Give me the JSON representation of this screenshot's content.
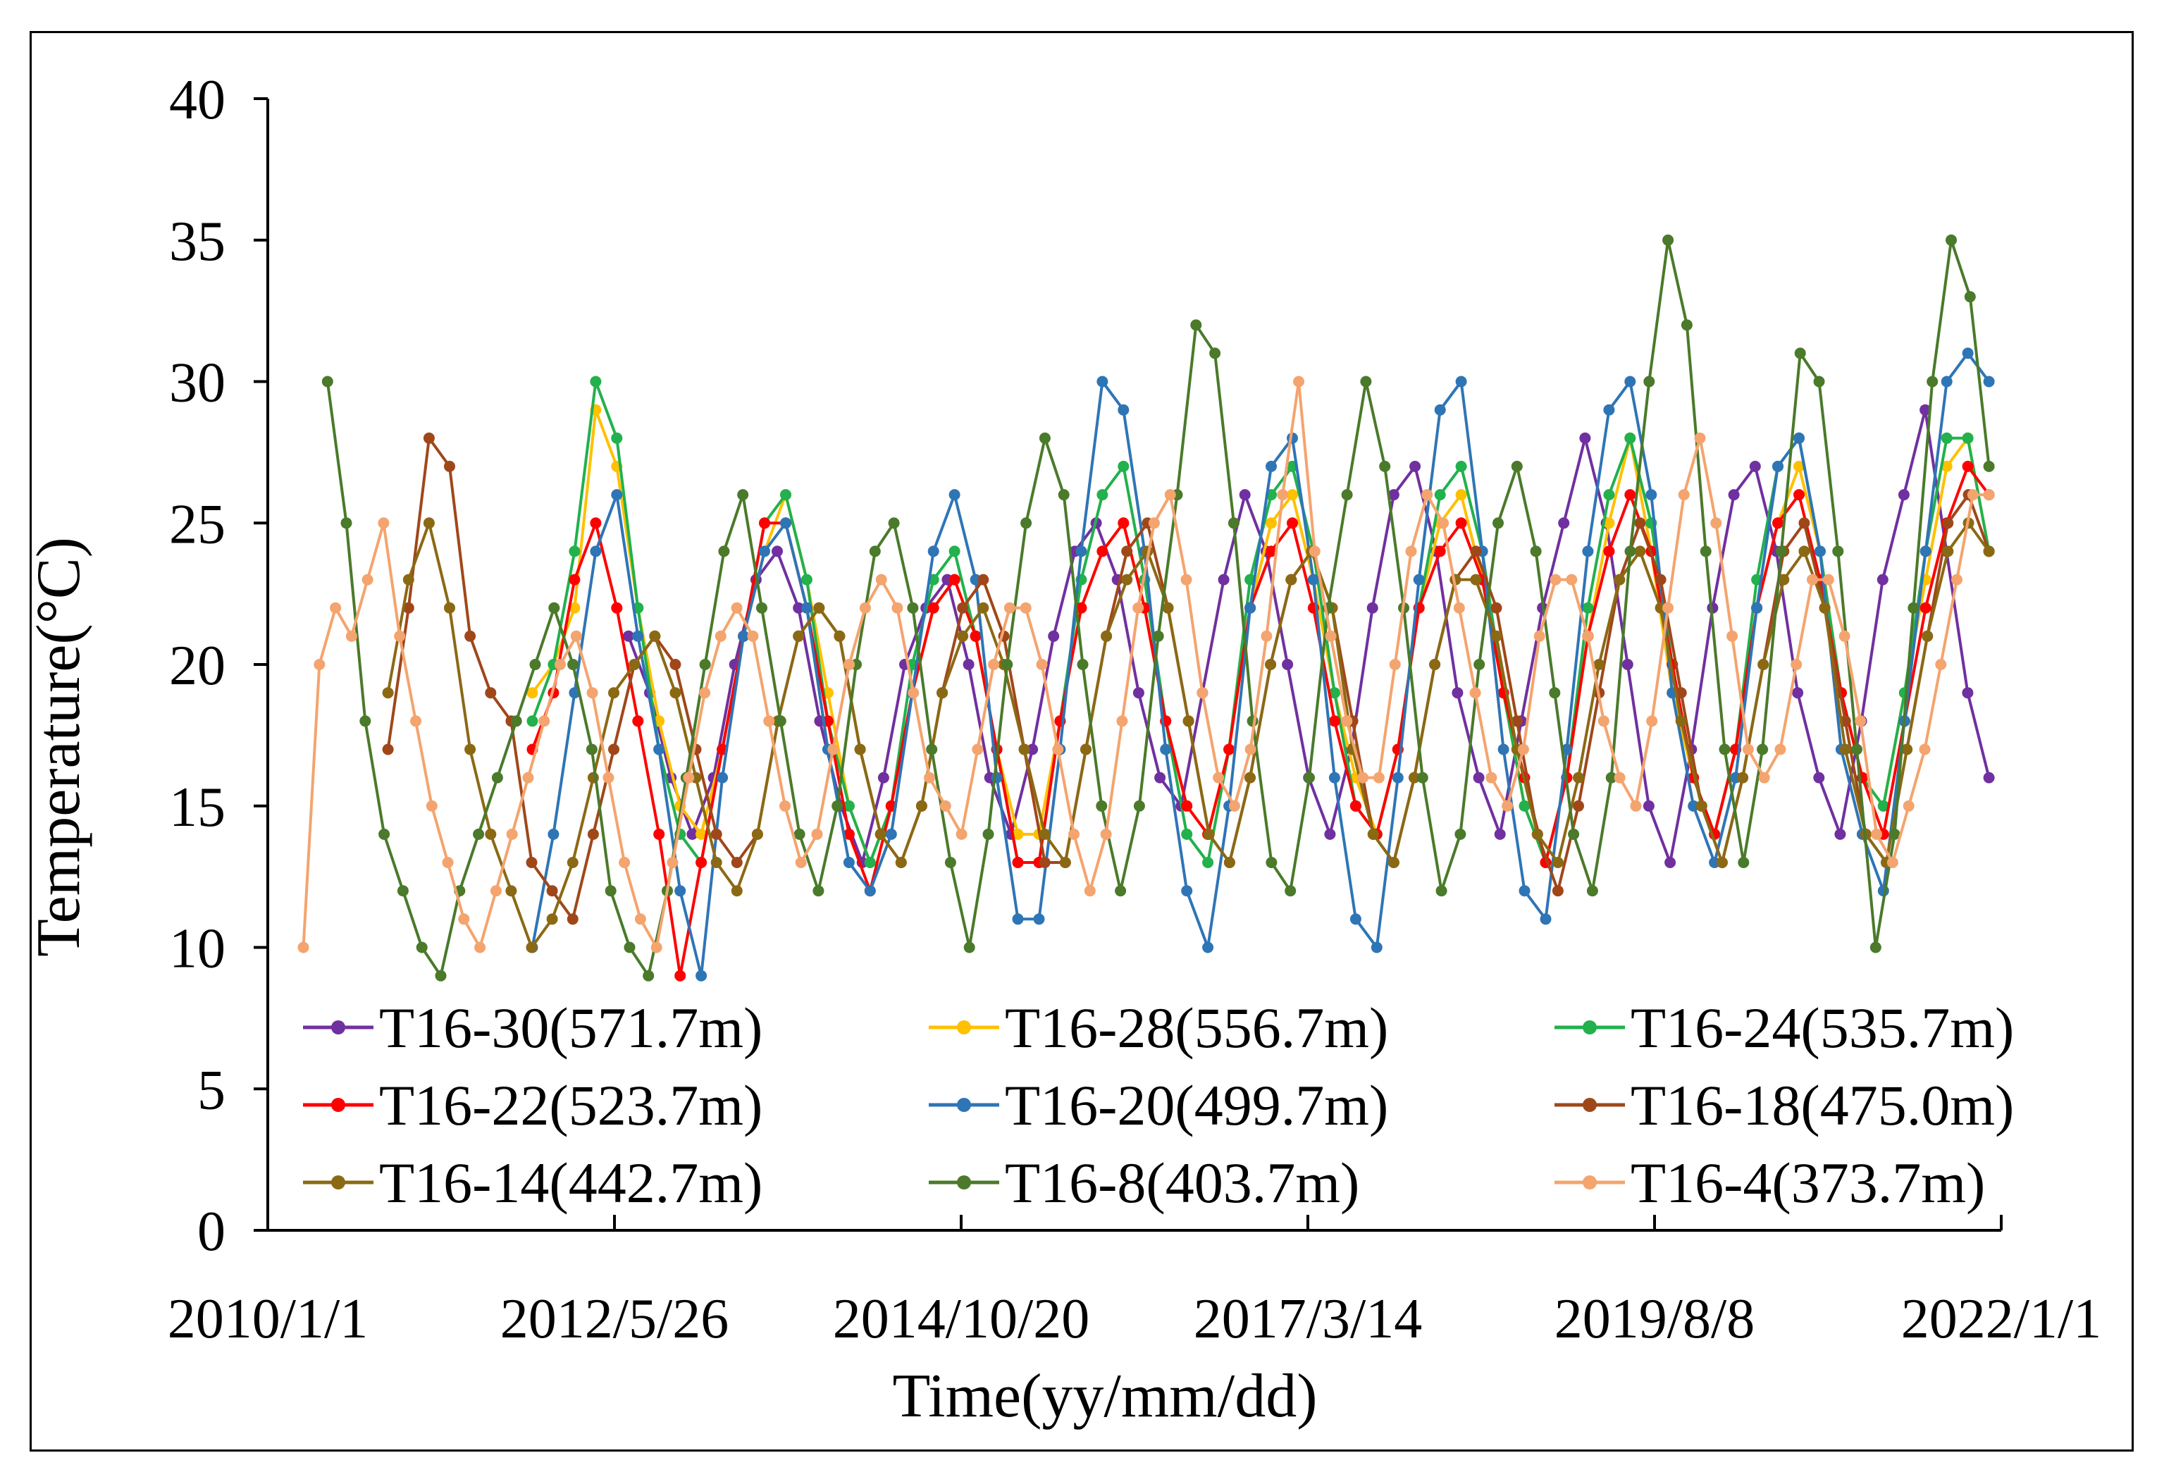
{
  "chart_data": {
    "type": "line",
    "title": "",
    "xlabel": "Time(yy/mm/dd)",
    "ylabel": "Temperature(°C)",
    "ylim": [
      0,
      40
    ],
    "yticks": [
      "0",
      "5",
      "10",
      "15",
      "20",
      "25",
      "30",
      "35",
      "40"
    ],
    "xlim": [
      "2010-01-01",
      "2022-01-01"
    ],
    "xticks": [
      "2010/1/1",
      "2012/5/26",
      "2014/10/20",
      "2017/3/14",
      "2019/8/8",
      "2022/1/1"
    ],
    "grid": false,
    "legend_position": "bottom",
    "series": [
      {
        "name": "T16-30(571.7m)",
        "color": "#7030A0",
        "first_date": "2012-07-01",
        "last_date": "2021-12-01",
        "values": [
          21,
          19,
          16,
          14,
          16,
          20,
          23,
          24,
          22,
          18,
          15,
          13,
          16,
          20,
          22,
          23,
          20,
          16,
          14,
          17,
          21,
          24,
          25,
          23,
          19,
          16,
          15,
          19,
          23,
          26,
          24,
          20,
          16,
          14,
          17,
          22,
          26,
          27,
          24,
          19,
          16,
          14,
          18,
          22,
          25,
          28,
          25,
          20,
          15,
          13,
          17,
          22,
          26,
          27,
          24,
          19,
          16,
          14,
          18,
          23,
          26,
          29,
          24,
          19,
          16
        ]
      },
      {
        "name": "T16-28(556.7m)",
        "color": "#FFC000",
        "first_date": "2011-11-01",
        "last_date": "2021-12-01",
        "values": [
          19,
          20,
          22,
          29,
          27,
          22,
          18,
          15,
          14,
          17,
          21,
          24,
          26,
          23,
          19,
          15,
          13,
          15,
          19,
          22,
          23,
          21,
          17,
          14,
          14,
          18,
          22,
          24,
          25,
          22,
          18,
          15,
          14,
          17,
          22,
          25,
          26,
          23,
          19,
          16,
          14,
          17,
          22,
          25,
          26,
          23,
          19,
          15,
          13,
          16,
          21,
          25,
          28,
          24,
          19,
          16,
          14,
          17,
          22,
          25,
          27,
          24,
          19,
          16,
          15,
          19,
          23,
          27,
          28,
          24
        ]
      },
      {
        "name": "T16-24(535.7m)",
        "color": "#22B14C",
        "first_date": "2011-11-01",
        "last_date": "2021-12-01",
        "values": [
          18,
          20,
          24,
          30,
          28,
          22,
          17,
          14,
          13,
          17,
          21,
          25,
          26,
          23,
          18,
          15,
          13,
          15,
          20,
          23,
          24,
          21,
          17,
          13,
          13,
          18,
          23,
          26,
          27,
          23,
          18,
          14,
          13,
          17,
          23,
          26,
          27,
          24,
          19,
          15,
          14,
          17,
          22,
          26,
          27,
          24,
          19,
          15,
          13,
          16,
          22,
          26,
          28,
          25,
          20,
          16,
          14,
          17,
          23,
          27,
          28,
          24,
          19,
          16,
          15,
          19,
          24,
          28,
          28,
          24
        ]
      },
      {
        "name": "T16-22(523.7m)",
        "color": "#FF0000",
        "first_date": "2011-11-01",
        "last_date": "2021-12-01",
        "values": [
          17,
          19,
          23,
          25,
          22,
          18,
          14,
          9,
          13,
          17,
          21,
          25,
          25,
          22,
          18,
          14,
          12,
          15,
          19,
          22,
          23,
          21,
          17,
          13,
          13,
          18,
          22,
          24,
          25,
          22,
          18,
          15,
          14,
          17,
          22,
          24,
          25,
          22,
          18,
          15,
          14,
          17,
          22,
          24,
          25,
          23,
          19,
          16,
          13,
          16,
          21,
          24,
          26,
          24,
          20,
          16,
          14,
          17,
          22,
          25,
          26,
          23,
          19,
          16,
          14,
          18,
          22,
          25,
          27,
          26
        ]
      },
      {
        "name": "T16-20(499.7m)",
        "color": "#2E75B6",
        "first_date": "2011-11-01",
        "last_date": "2021-12-01",
        "values": [
          10,
          14,
          19,
          24,
          26,
          21,
          17,
          12,
          9,
          16,
          21,
          24,
          25,
          22,
          17,
          13,
          12,
          14,
          19,
          24,
          26,
          23,
          16,
          11,
          11,
          17,
          24,
          30,
          29,
          24,
          17,
          12,
          10,
          15,
          22,
          27,
          28,
          23,
          16,
          11,
          10,
          16,
          23,
          29,
          30,
          24,
          17,
          12,
          11,
          17,
          24,
          29,
          30,
          26,
          19,
          15,
          13,
          16,
          22,
          27,
          28,
          24,
          17,
          14,
          12,
          18,
          24,
          30,
          31,
          30
        ]
      },
      {
        "name": "T16-18(475.0m)",
        "color": "#A0471A",
        "first_date": "2010-11-01",
        "last_date": "2021-12-01",
        "values": [
          17,
          22,
          28,
          27,
          21,
          19,
          18,
          13,
          12,
          11,
          14,
          17,
          20,
          21,
          20,
          17,
          14,
          13,
          14,
          18,
          21,
          22,
          21,
          17,
          14,
          13,
          15,
          19,
          22,
          23,
          21,
          17,
          13,
          13,
          17,
          21,
          24,
          25,
          22,
          18,
          14,
          13,
          16,
          20,
          23,
          24,
          22,
          18,
          14,
          13,
          16,
          20,
          23,
          24,
          22,
          18,
          14,
          12,
          15,
          19,
          23,
          25,
          23,
          19,
          15,
          13,
          16,
          20,
          24,
          25,
          22,
          18,
          14,
          13,
          17,
          21,
          25,
          26,
          24
        ]
      },
      {
        "name": "T16-14(442.7m)",
        "color": "#8B6914",
        "first_date": "2010-11-01",
        "last_date": "2021-12-01",
        "values": [
          19,
          23,
          25,
          22,
          17,
          14,
          12,
          10,
          11,
          13,
          16,
          19,
          20,
          21,
          19,
          16,
          13,
          12,
          14,
          18,
          21,
          22,
          21,
          17,
          14,
          13,
          15,
          19,
          21,
          22,
          20,
          17,
          14,
          13,
          17,
          21,
          23,
          24,
          22,
          18,
          14,
          13,
          16,
          20,
          23,
          24,
          22,
          17,
          14,
          13,
          16,
          20,
          23,
          23,
          21,
          17,
          14,
          13,
          16,
          20,
          23,
          24,
          22,
          18,
          15,
          13,
          16,
          20,
          23,
          24,
          22,
          17,
          14,
          13,
          17,
          21,
          24,
          25,
          24
        ]
      },
      {
        "name": "T16-8(403.7m)",
        "color": "#4A7A2A",
        "first_date": "2010-06-01",
        "last_date": "2021-12-01",
        "values": [
          30,
          25,
          18,
          14,
          12,
          10,
          9,
          12,
          14,
          16,
          18,
          20,
          22,
          20,
          17,
          12,
          10,
          9,
          12,
          16,
          20,
          24,
          26,
          22,
          18,
          14,
          12,
          15,
          20,
          24,
          25,
          22,
          17,
          13,
          10,
          14,
          20,
          25,
          28,
          26,
          20,
          15,
          12,
          15,
          21,
          26,
          32,
          31,
          25,
          18,
          13,
          12,
          16,
          22,
          26,
          30,
          27,
          22,
          16,
          12,
          14,
          20,
          25,
          27,
          24,
          19,
          14,
          12,
          16,
          24,
          30,
          35,
          32,
          24,
          17,
          13,
          17,
          24,
          31,
          30,
          24,
          17,
          10,
          14,
          22,
          30,
          35,
          33,
          27
        ]
      },
      {
        "name": "T16-4(373.7m)",
        "color": "#F4A46E",
        "first_date": "2010-04-01",
        "last_date": "2021-12-01",
        "values": [
          10,
          20,
          22,
          21,
          23,
          25,
          21,
          18,
          15,
          13,
          11,
          10,
          12,
          14,
          16,
          18,
          20,
          21,
          19,
          16,
          13,
          11,
          10,
          13,
          16,
          19,
          21,
          22,
          21,
          18,
          15,
          13,
          14,
          17,
          20,
          22,
          23,
          22,
          19,
          16,
          15,
          14,
          17,
          20,
          22,
          22,
          20,
          17,
          14,
          12,
          14,
          18,
          22,
          25,
          26,
          23,
          19,
          16,
          15,
          17,
          21,
          26,
          30,
          24,
          21,
          18,
          16,
          16,
          20,
          24,
          26,
          25,
          22,
          19,
          16,
          15,
          17,
          21,
          23,
          23,
          21,
          18,
          16,
          15,
          18,
          22,
          26,
          28,
          25,
          21,
          17,
          16,
          17,
          20,
          23,
          23,
          21,
          18,
          14,
          13,
          15,
          17,
          20,
          23,
          26,
          26
        ]
      }
    ]
  }
}
